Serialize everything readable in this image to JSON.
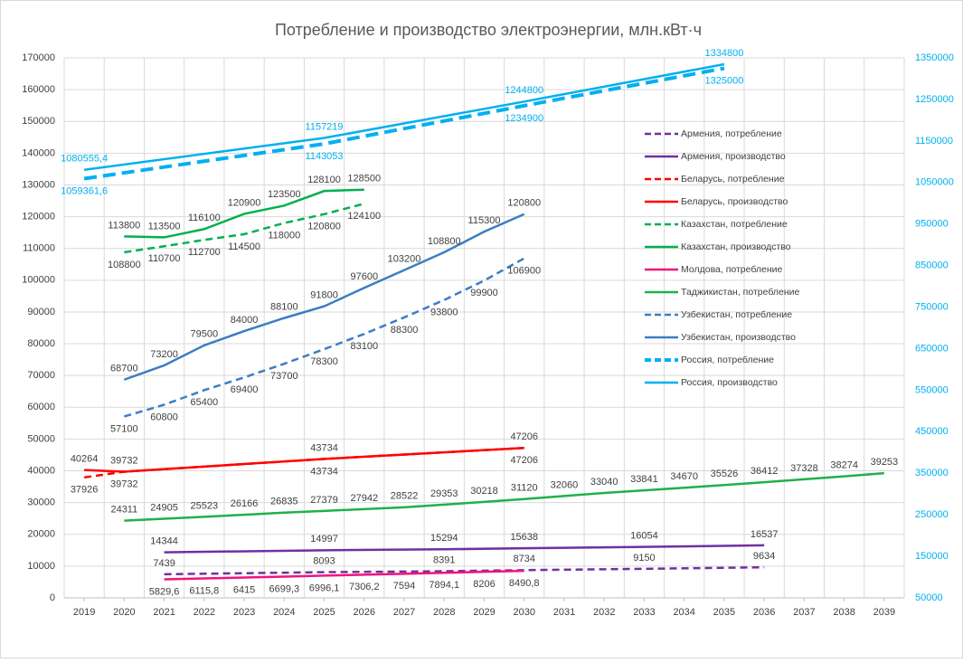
{
  "chart_data": {
    "type": "line",
    "title": "Потребление и производство электроэнергии, млн.кВт·ч",
    "xlim": [
      2018.5,
      2039.5
    ],
    "xticks": [
      2019,
      2020,
      2021,
      2022,
      2023,
      2024,
      2025,
      2026,
      2027,
      2028,
      2029,
      2030,
      2031,
      2032,
      2033,
      2034,
      2035,
      2036,
      2037,
      2038,
      2039
    ],
    "ylim": [
      0,
      170000
    ],
    "yticks": [
      0,
      10000,
      20000,
      30000,
      40000,
      50000,
      60000,
      70000,
      80000,
      90000,
      100000,
      110000,
      120000,
      130000,
      140000,
      150000,
      160000,
      170000
    ],
    "y2lim": [
      50000,
      1350000
    ],
    "y2ticks": [
      50000,
      150000,
      250000,
      350000,
      450000,
      550000,
      650000,
      750000,
      850000,
      950000,
      1050000,
      1150000,
      1250000,
      1350000
    ],
    "y2color": "#00b0f0",
    "grid": true,
    "legend": "right",
    "series": [
      {
        "name": "Армения, потребление",
        "color": "#7030a0",
        "line_style": "dashed",
        "x": [
          2021,
          2025,
          2028,
          2030,
          2033,
          2036
        ],
        "values": [
          7439,
          8093,
          8391,
          8734,
          9150,
          9634
        ]
      },
      {
        "name": "Армения, производство",
        "color": "#7030a0",
        "line_style": "solid",
        "x": [
          2021,
          2025,
          2028,
          2030,
          2033,
          2036
        ],
        "values": [
          14344,
          14997,
          15294,
          15638,
          16054,
          16537
        ]
      },
      {
        "name": "Беларусь, потребление",
        "color": "#ff0000",
        "line_style": "dashed",
        "x": [
          2019,
          2020,
          2025,
          2030
        ],
        "values": [
          37926,
          39732,
          43734,
          47206
        ]
      },
      {
        "name": "Беларусь, производство",
        "color": "#ff0000",
        "line_style": "solid",
        "x": [
          2019,
          2020,
          2025,
          2030
        ],
        "values": [
          40264,
          39732,
          43734,
          47206
        ]
      },
      {
        "name": "Казахстан, потребление",
        "color": "#00b050",
        "line_style": "dashed",
        "x": [
          2020,
          2021,
          2022,
          2023,
          2024,
          2025,
          2026
        ],
        "values": [
          108800,
          110700,
          112700,
          114500,
          118000,
          120800,
          124100
        ]
      },
      {
        "name": "Казахстан, производство",
        "color": "#00b050",
        "line_style": "solid",
        "x": [
          2020,
          2021,
          2022,
          2023,
          2024,
          2025,
          2026
        ],
        "values": [
          113800,
          113500,
          116100,
          120900,
          123500,
          128100,
          128500
        ]
      },
      {
        "name": "Молдова, потребление",
        "color": "#f0147c",
        "line_style": "solid",
        "x": [
          2021,
          2022,
          2023,
          2024,
          2025,
          2026,
          2027,
          2028,
          2029,
          2030
        ],
        "values": [
          5829.6,
          6115.8,
          6415,
          6699.3,
          6996.1,
          7306.2,
          7594,
          7894.1,
          8206,
          8490.8
        ],
        "value_labels": [
          "5829,6",
          "6115,8",
          "6415",
          "6699,3",
          "6996,1",
          "7306,2",
          "7594",
          "7894,1",
          "8206",
          "8490,8"
        ]
      },
      {
        "name": "Таджикистан, потребление",
        "color": "#20b04b",
        "line_style": "solid",
        "x": [
          2020,
          2021,
          2022,
          2023,
          2024,
          2025,
          2026,
          2027,
          2028,
          2029,
          2030,
          2031,
          2032,
          2033,
          2034,
          2035,
          2036,
          2037,
          2038,
          2039
        ],
        "values": [
          24311,
          24905,
          25523,
          26166,
          26835,
          27379,
          27942,
          28522,
          29353,
          30218,
          31120,
          32060,
          33040,
          33841,
          34670,
          35526,
          36412,
          37328,
          38274,
          39253
        ]
      },
      {
        "name": "Узбекистан, потребление",
        "color": "#3c7dc4",
        "line_style": "dashed",
        "x": [
          2020,
          2021,
          2022,
          2023,
          2024,
          2025,
          2026,
          2027,
          2028,
          2029,
          2030
        ],
        "values": [
          57100,
          60800,
          65400,
          69400,
          73700,
          78300,
          83100,
          88300,
          93800,
          99900,
          106900
        ]
      },
      {
        "name": "Узбекистан, производство",
        "color": "#3c7dc4",
        "line_style": "solid",
        "x": [
          2020,
          2021,
          2022,
          2023,
          2024,
          2025,
          2026,
          2027,
          2028,
          2029,
          2030
        ],
        "values": [
          68700,
          73200,
          79500,
          84000,
          88100,
          91800,
          97600,
          103200,
          108800,
          115300,
          120800
        ]
      },
      {
        "name": "Россия, потребление",
        "color": "#00b0f0",
        "line_style": "dashed",
        "axis": "y2",
        "x": [
          2019,
          2025,
          2030,
          2035
        ],
        "values": [
          1059361.6,
          1143053,
          1234900,
          1325000
        ],
        "value_labels": [
          "1059361,6",
          "1143053",
          "1234900",
          "1325000"
        ]
      },
      {
        "name": "Россия, производство",
        "color": "#00b0f0",
        "line_style": "solid",
        "axis": "y2",
        "x": [
          2019,
          2025,
          2030,
          2035
        ],
        "values": [
          1080555.4,
          1157219,
          1244800,
          1334800
        ],
        "value_labels": [
          "1080555,4",
          "1157219",
          "1244800",
          "1334800"
        ]
      }
    ]
  }
}
